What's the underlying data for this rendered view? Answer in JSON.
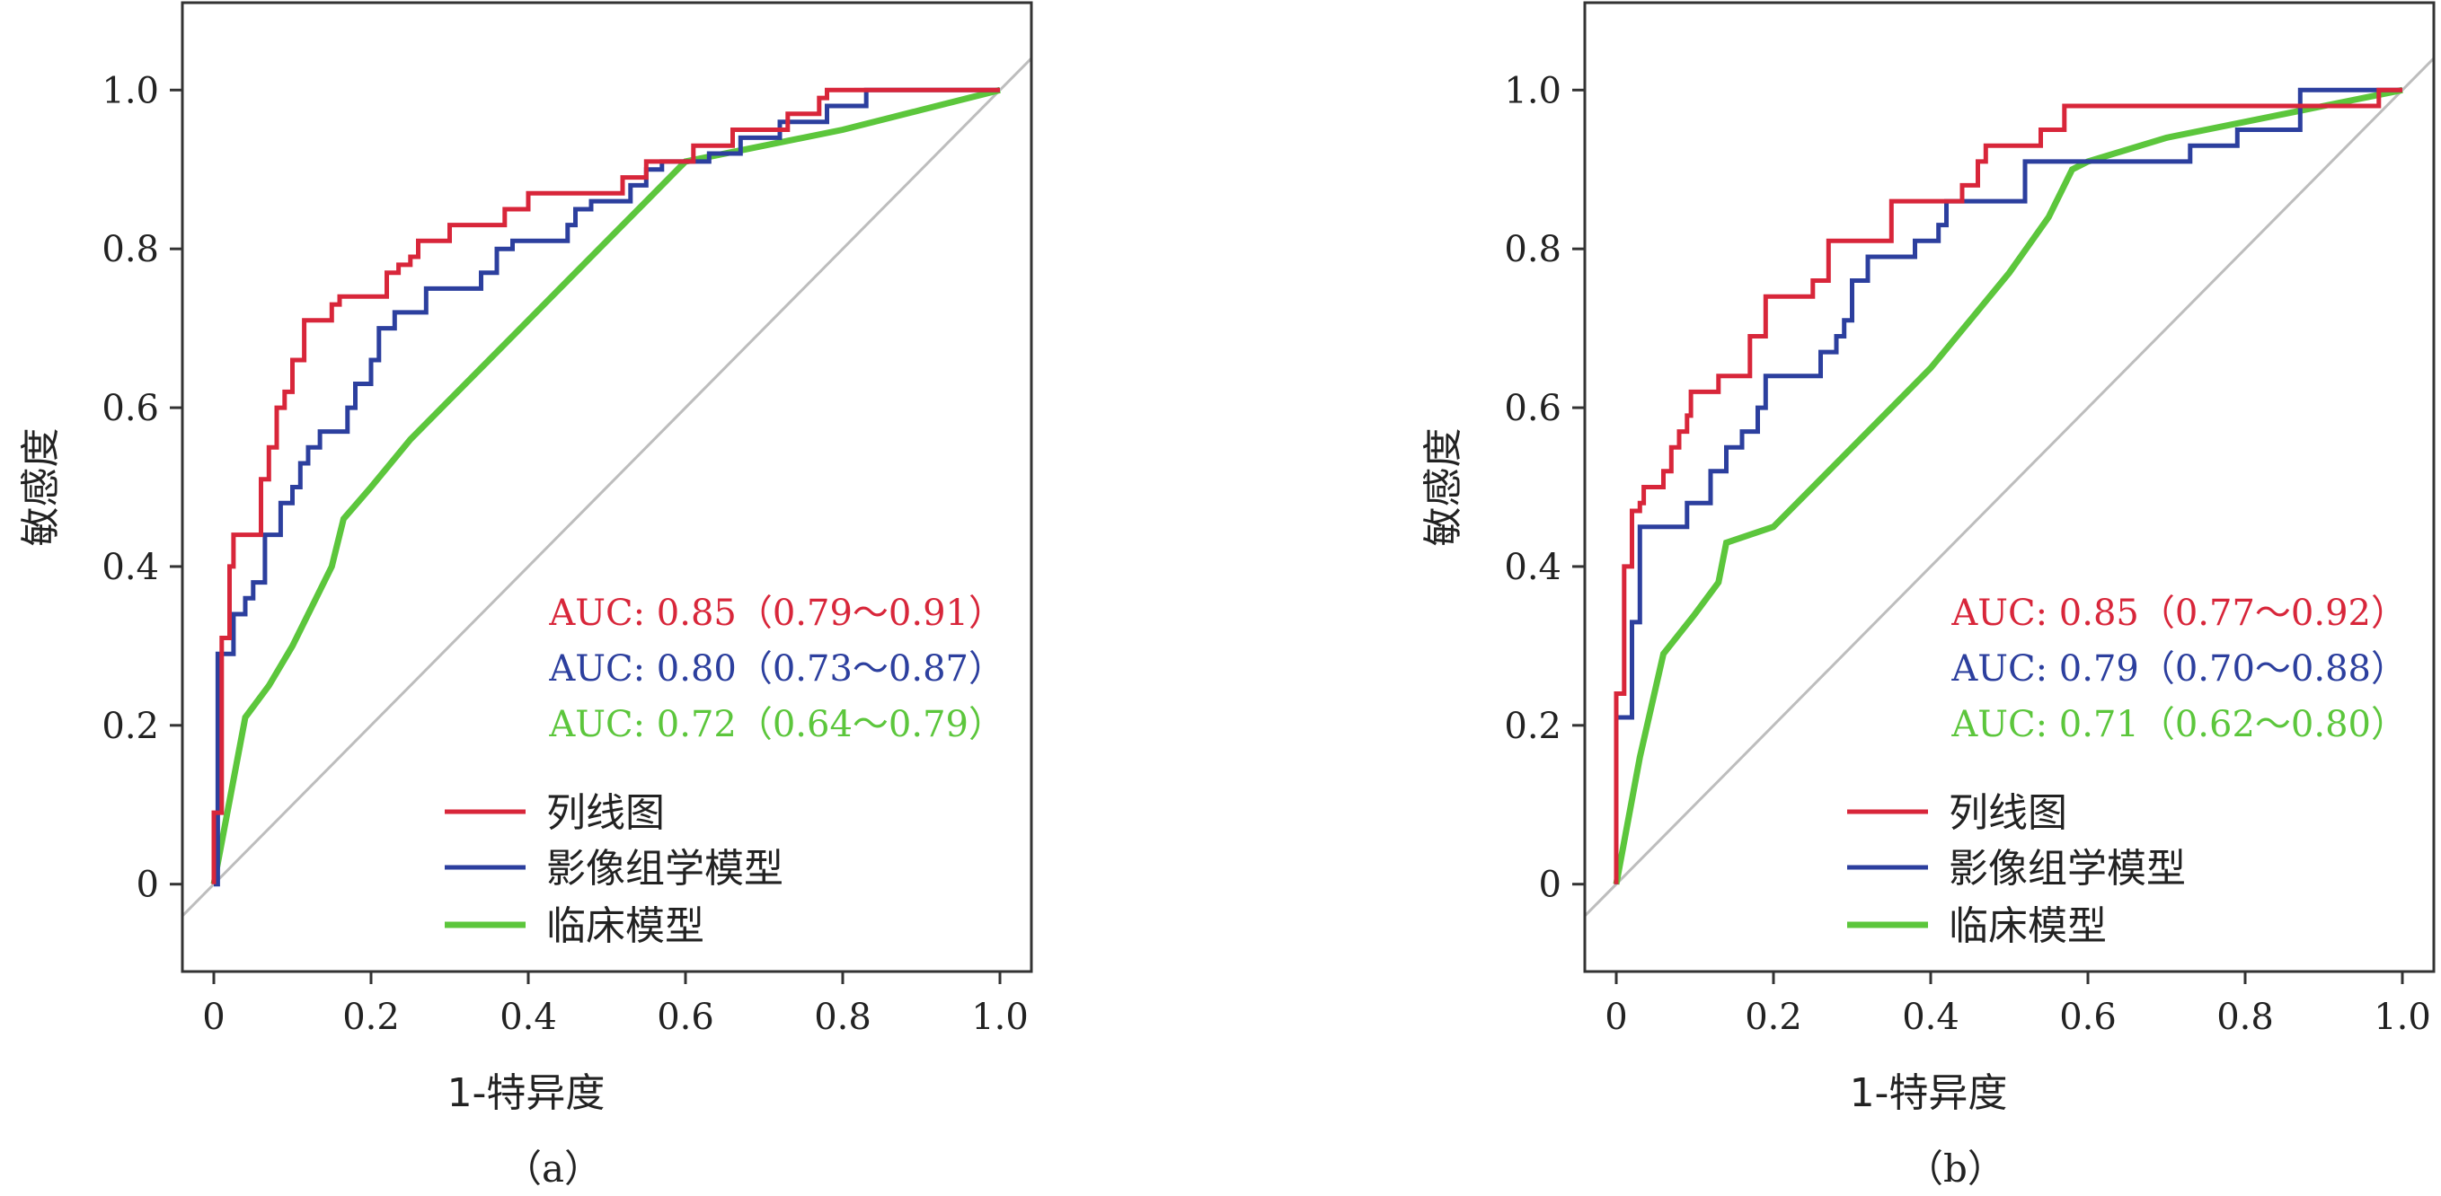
{
  "colors": {
    "nomogram": "#d8263a",
    "radiomics": "#2c3f9e",
    "clinical": "#5cc63c",
    "diagonal": "#bdbdbd",
    "frame": "#333333"
  },
  "chart_data": [
    {
      "type": "line",
      "caption": "（a）",
      "xlabel": "1-特异度",
      "ylabel": "敏感度",
      "xlim": [
        -0.04,
        1.04
      ],
      "ylim": [
        -0.11,
        1.11
      ],
      "x_ticks": [
        0,
        0.2,
        0.4,
        0.6,
        0.8,
        1.0
      ],
      "x_tick_labels": [
        "0",
        "0.2",
        "0.4",
        "0.6",
        "0.8",
        "1.0"
      ],
      "y_ticks": [
        0,
        0.2,
        0.4,
        0.6,
        0.8,
        1.0
      ],
      "y_tick_labels": [
        "0",
        "0.2",
        "0.4",
        "0.6",
        "0.8",
        "1.0"
      ],
      "grid": false,
      "legend_position": "bottom-right",
      "reference_line": true,
      "series": [
        {
          "name": "列线图",
          "color_key": "nomogram",
          "auc_label": "AUC: 0.85（0.79～0.91）",
          "step": true,
          "points": [
            [
              0,
              0
            ],
            [
              0,
              0.09
            ],
            [
              0.01,
              0.09
            ],
            [
              0.01,
              0.31
            ],
            [
              0.02,
              0.31
            ],
            [
              0.02,
              0.4
            ],
            [
              0.025,
              0.4
            ],
            [
              0.025,
              0.44
            ],
            [
              0.06,
              0.44
            ],
            [
              0.06,
              0.51
            ],
            [
              0.07,
              0.51
            ],
            [
              0.07,
              0.55
            ],
            [
              0.08,
              0.55
            ],
            [
              0.08,
              0.6
            ],
            [
              0.09,
              0.6
            ],
            [
              0.09,
              0.62
            ],
            [
              0.1,
              0.62
            ],
            [
              0.1,
              0.66
            ],
            [
              0.115,
              0.66
            ],
            [
              0.115,
              0.71
            ],
            [
              0.15,
              0.71
            ],
            [
              0.15,
              0.73
            ],
            [
              0.16,
              0.73
            ],
            [
              0.16,
              0.74
            ],
            [
              0.22,
              0.74
            ],
            [
              0.22,
              0.77
            ],
            [
              0.235,
              0.77
            ],
            [
              0.235,
              0.78
            ],
            [
              0.25,
              0.78
            ],
            [
              0.25,
              0.79
            ],
            [
              0.26,
              0.79
            ],
            [
              0.26,
              0.81
            ],
            [
              0.3,
              0.81
            ],
            [
              0.3,
              0.83
            ],
            [
              0.37,
              0.83
            ],
            [
              0.37,
              0.85
            ],
            [
              0.4,
              0.85
            ],
            [
              0.4,
              0.87
            ],
            [
              0.52,
              0.87
            ],
            [
              0.52,
              0.89
            ],
            [
              0.55,
              0.89
            ],
            [
              0.55,
              0.91
            ],
            [
              0.61,
              0.91
            ],
            [
              0.61,
              0.93
            ],
            [
              0.66,
              0.93
            ],
            [
              0.66,
              0.95
            ],
            [
              0.73,
              0.95
            ],
            [
              0.73,
              0.97
            ],
            [
              0.77,
              0.97
            ],
            [
              0.77,
              0.99
            ],
            [
              0.78,
              0.99
            ],
            [
              0.78,
              1.0
            ],
            [
              1.0,
              1.0
            ]
          ]
        },
        {
          "name": "影像组学模型",
          "color_key": "radiomics",
          "auc_label": "AUC: 0.80（0.73～0.87）",
          "step": true,
          "points": [
            [
              0,
              0
            ],
            [
              0.005,
              0
            ],
            [
              0.005,
              0.29
            ],
            [
              0.025,
              0.29
            ],
            [
              0.025,
              0.34
            ],
            [
              0.04,
              0.34
            ],
            [
              0.04,
              0.36
            ],
            [
              0.05,
              0.36
            ],
            [
              0.05,
              0.38
            ],
            [
              0.065,
              0.38
            ],
            [
              0.065,
              0.44
            ],
            [
              0.085,
              0.44
            ],
            [
              0.085,
              0.48
            ],
            [
              0.1,
              0.48
            ],
            [
              0.1,
              0.5
            ],
            [
              0.11,
              0.5
            ],
            [
              0.11,
              0.53
            ],
            [
              0.12,
              0.53
            ],
            [
              0.12,
              0.55
            ],
            [
              0.135,
              0.55
            ],
            [
              0.135,
              0.57
            ],
            [
              0.17,
              0.57
            ],
            [
              0.17,
              0.6
            ],
            [
              0.18,
              0.6
            ],
            [
              0.18,
              0.63
            ],
            [
              0.2,
              0.63
            ],
            [
              0.2,
              0.66
            ],
            [
              0.21,
              0.66
            ],
            [
              0.21,
              0.7
            ],
            [
              0.23,
              0.7
            ],
            [
              0.23,
              0.72
            ],
            [
              0.27,
              0.72
            ],
            [
              0.27,
              0.75
            ],
            [
              0.34,
              0.75
            ],
            [
              0.34,
              0.77
            ],
            [
              0.36,
              0.77
            ],
            [
              0.36,
              0.8
            ],
            [
              0.38,
              0.8
            ],
            [
              0.38,
              0.81
            ],
            [
              0.45,
              0.81
            ],
            [
              0.45,
              0.83
            ],
            [
              0.46,
              0.83
            ],
            [
              0.46,
              0.85
            ],
            [
              0.48,
              0.85
            ],
            [
              0.48,
              0.86
            ],
            [
              0.53,
              0.86
            ],
            [
              0.53,
              0.88
            ],
            [
              0.55,
              0.88
            ],
            [
              0.55,
              0.9
            ],
            [
              0.57,
              0.9
            ],
            [
              0.57,
              0.91
            ],
            [
              0.63,
              0.91
            ],
            [
              0.63,
              0.92
            ],
            [
              0.67,
              0.92
            ],
            [
              0.67,
              0.94
            ],
            [
              0.72,
              0.94
            ],
            [
              0.72,
              0.96
            ],
            [
              0.78,
              0.96
            ],
            [
              0.78,
              0.98
            ],
            [
              0.83,
              0.98
            ],
            [
              0.83,
              1.0
            ],
            [
              1.0,
              1.0
            ]
          ]
        },
        {
          "name": "临床模型",
          "color_key": "clinical",
          "auc_label": "AUC: 0.72（0.64～0.79）",
          "step": false,
          "points": [
            [
              0,
              0
            ],
            [
              0.04,
              0.21
            ],
            [
              0.07,
              0.25
            ],
            [
              0.1,
              0.3
            ],
            [
              0.13,
              0.36
            ],
            [
              0.15,
              0.4
            ],
            [
              0.165,
              0.46
            ],
            [
              0.2,
              0.5
            ],
            [
              0.25,
              0.56
            ],
            [
              0.3,
              0.61
            ],
            [
              0.35,
              0.66
            ],
            [
              0.4,
              0.71
            ],
            [
              0.45,
              0.76
            ],
            [
              0.5,
              0.81
            ],
            [
              0.55,
              0.86
            ],
            [
              0.59,
              0.9
            ],
            [
              0.6,
              0.91
            ],
            [
              0.7,
              0.93
            ],
            [
              0.8,
              0.95
            ],
            [
              0.9,
              0.975
            ],
            [
              1.0,
              1.0
            ]
          ]
        }
      ]
    },
    {
      "type": "line",
      "caption": "（b）",
      "xlabel": "1-特异度",
      "ylabel": "敏感度",
      "xlim": [
        -0.04,
        1.04
      ],
      "ylim": [
        -0.11,
        1.11
      ],
      "x_ticks": [
        0,
        0.2,
        0.4,
        0.6,
        0.8,
        1.0
      ],
      "x_tick_labels": [
        "0",
        "0.2",
        "0.4",
        "0.6",
        "0.8",
        "1.0"
      ],
      "y_ticks": [
        0,
        0.2,
        0.4,
        0.6,
        0.8,
        1.0
      ],
      "y_tick_labels": [
        "0",
        "0.2",
        "0.4",
        "0.6",
        "0.8",
        "1.0"
      ],
      "grid": false,
      "legend_position": "bottom-right",
      "reference_line": true,
      "series": [
        {
          "name": "列线图",
          "color_key": "nomogram",
          "auc_label": "AUC: 0.85（0.77～0.92）",
          "step": true,
          "points": [
            [
              0,
              0
            ],
            [
              0,
              0.24
            ],
            [
              0.01,
              0.24
            ],
            [
              0.01,
              0.4
            ],
            [
              0.02,
              0.4
            ],
            [
              0.02,
              0.47
            ],
            [
              0.03,
              0.47
            ],
            [
              0.03,
              0.48
            ],
            [
              0.035,
              0.48
            ],
            [
              0.035,
              0.5
            ],
            [
              0.06,
              0.5
            ],
            [
              0.06,
              0.52
            ],
            [
              0.07,
              0.52
            ],
            [
              0.07,
              0.55
            ],
            [
              0.08,
              0.55
            ],
            [
              0.08,
              0.57
            ],
            [
              0.09,
              0.57
            ],
            [
              0.09,
              0.59
            ],
            [
              0.095,
              0.59
            ],
            [
              0.095,
              0.62
            ],
            [
              0.13,
              0.62
            ],
            [
              0.13,
              0.64
            ],
            [
              0.17,
              0.64
            ],
            [
              0.17,
              0.69
            ],
            [
              0.19,
              0.69
            ],
            [
              0.19,
              0.74
            ],
            [
              0.25,
              0.74
            ],
            [
              0.25,
              0.76
            ],
            [
              0.27,
              0.76
            ],
            [
              0.27,
              0.81
            ],
            [
              0.35,
              0.81
            ],
            [
              0.35,
              0.86
            ],
            [
              0.44,
              0.86
            ],
            [
              0.44,
              0.88
            ],
            [
              0.46,
              0.88
            ],
            [
              0.46,
              0.91
            ],
            [
              0.47,
              0.91
            ],
            [
              0.47,
              0.93
            ],
            [
              0.54,
              0.93
            ],
            [
              0.54,
              0.95
            ],
            [
              0.57,
              0.95
            ],
            [
              0.57,
              0.98
            ],
            [
              0.97,
              0.98
            ],
            [
              0.97,
              1.0
            ],
            [
              1.0,
              1.0
            ]
          ]
        },
        {
          "name": "影像组学模型",
          "color_key": "radiomics",
          "auc_label": "AUC: 0.79（0.70～0.88）",
          "step": true,
          "points": [
            [
              0,
              0
            ],
            [
              0,
              0.21
            ],
            [
              0.02,
              0.21
            ],
            [
              0.02,
              0.33
            ],
            [
              0.03,
              0.33
            ],
            [
              0.03,
              0.45
            ],
            [
              0.09,
              0.45
            ],
            [
              0.09,
              0.48
            ],
            [
              0.12,
              0.48
            ],
            [
              0.12,
              0.52
            ],
            [
              0.14,
              0.52
            ],
            [
              0.14,
              0.55
            ],
            [
              0.16,
              0.55
            ],
            [
              0.16,
              0.57
            ],
            [
              0.18,
              0.57
            ],
            [
              0.18,
              0.6
            ],
            [
              0.19,
              0.6
            ],
            [
              0.19,
              0.64
            ],
            [
              0.26,
              0.64
            ],
            [
              0.26,
              0.67
            ],
            [
              0.28,
              0.67
            ],
            [
              0.28,
              0.69
            ],
            [
              0.29,
              0.69
            ],
            [
              0.29,
              0.71
            ],
            [
              0.3,
              0.71
            ],
            [
              0.3,
              0.76
            ],
            [
              0.32,
              0.76
            ],
            [
              0.32,
              0.79
            ],
            [
              0.38,
              0.79
            ],
            [
              0.38,
              0.81
            ],
            [
              0.41,
              0.81
            ],
            [
              0.41,
              0.83
            ],
            [
              0.42,
              0.83
            ],
            [
              0.42,
              0.86
            ],
            [
              0.52,
              0.86
            ],
            [
              0.52,
              0.91
            ],
            [
              0.73,
              0.91
            ],
            [
              0.73,
              0.93
            ],
            [
              0.79,
              0.93
            ],
            [
              0.79,
              0.95
            ],
            [
              0.87,
              0.95
            ],
            [
              0.87,
              1.0
            ],
            [
              1.0,
              1.0
            ]
          ]
        },
        {
          "name": "临床模型",
          "color_key": "clinical",
          "auc_label": "AUC: 0.71（0.62～0.80）",
          "step": false,
          "points": [
            [
              0,
              0
            ],
            [
              0.03,
              0.16
            ],
            [
              0.06,
              0.29
            ],
            [
              0.1,
              0.34
            ],
            [
              0.13,
              0.38
            ],
            [
              0.14,
              0.43
            ],
            [
              0.2,
              0.45
            ],
            [
              0.25,
              0.5
            ],
            [
              0.3,
              0.55
            ],
            [
              0.35,
              0.6
            ],
            [
              0.4,
              0.65
            ],
            [
              0.45,
              0.71
            ],
            [
              0.5,
              0.77
            ],
            [
              0.55,
              0.84
            ],
            [
              0.58,
              0.9
            ],
            [
              0.6,
              0.91
            ],
            [
              0.7,
              0.94
            ],
            [
              0.8,
              0.96
            ],
            [
              0.9,
              0.98
            ],
            [
              1.0,
              1.0
            ]
          ]
        }
      ]
    }
  ]
}
